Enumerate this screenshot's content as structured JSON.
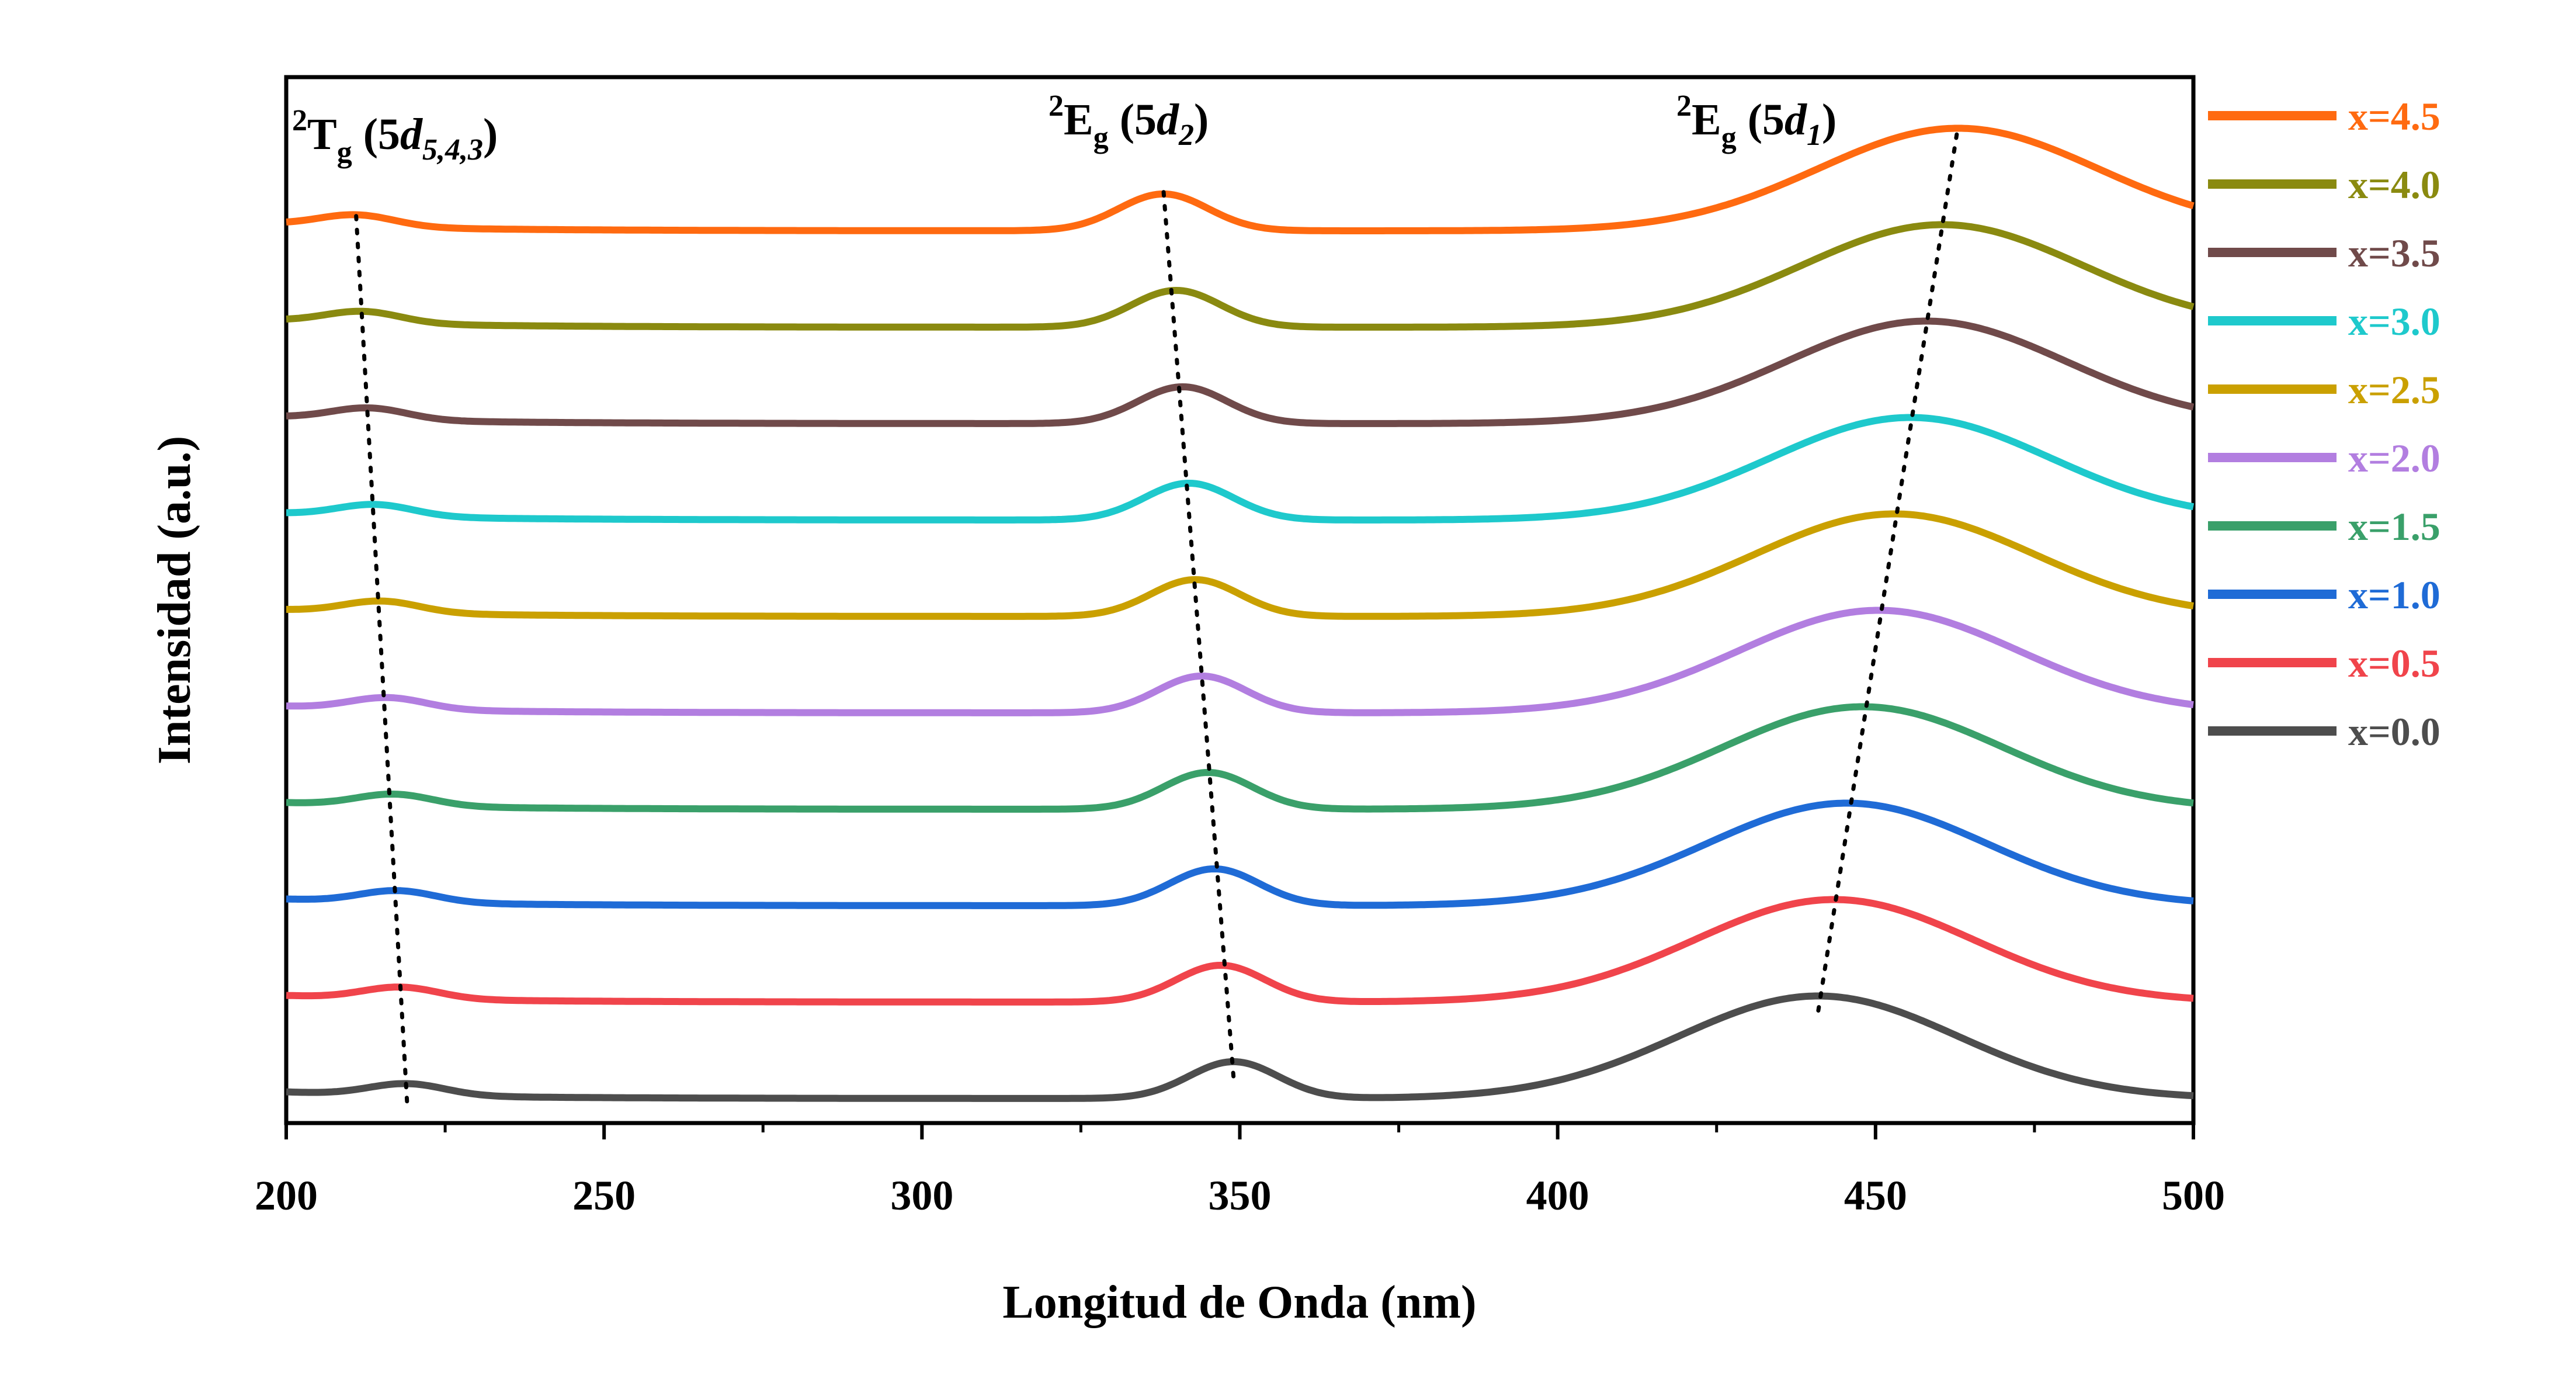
{
  "chart_data": {
    "type": "line",
    "xlabel": "Longitud de Onda (nm)",
    "ylabel": "Intensidad (a.u.)",
    "xlim": [
      200,
      500
    ],
    "x_ticks": [
      "200",
      "250",
      "300",
      "350",
      "400",
      "450",
      "500"
    ],
    "y_ticks_labeled": false,
    "grid": false,
    "legend_position": "right, outside plot",
    "legend_order": [
      "x=4.5",
      "x=4.0",
      "x=3.5",
      "x=3.0",
      "x=2.5",
      "x=2.0",
      "x=1.5",
      "x=1.0",
      "x=0.5",
      "x=0.0"
    ],
    "annotations": [
      {
        "label": "2Tg (5d5,4,3)",
        "parts": {
          "sup": "2",
          "main": "T",
          "sub": "g",
          "paren_open": " (5",
          "italic": "d",
          "italic_sub": "5,4,3",
          "paren_close": ")"
        }
      },
      {
        "label": "2Eg (5d2)",
        "parts": {
          "sup": "2",
          "main": "E",
          "sub": "g",
          "paren_open": " (5",
          "italic": "d",
          "italic_sub": "2",
          "paren_close": ")"
        }
      },
      {
        "label": "2Eg (5d1)",
        "parts": {
          "sup": "2",
          "main": "E",
          "sub": "g",
          "paren_open": " (5",
          "italic": "d",
          "italic_sub": "1",
          "paren_close": ")"
        }
      }
    ],
    "dotted_trend_lines": [
      {
        "band": "5d5,4,3",
        "x_values_x0_to_x45": [
          219,
          218,
          217.5,
          217,
          216,
          215,
          214,
          213,
          212,
          211
        ]
      },
      {
        "band": "5d2",
        "x_values_x0_to_x45": [
          349,
          347,
          346,
          345,
          344,
          343,
          342,
          341,
          340,
          338
        ]
      },
      {
        "band": "5d1",
        "x_values_x0_to_x45": [
          441,
          443.5,
          445.5,
          448,
          450.5,
          453,
          455.5,
          458,
          460.5,
          463
        ]
      }
    ],
    "series": [
      {
        "name": "x=0.0",
        "color": "#4d4d4d",
        "peaks_nm": [
          219,
          349,
          441
        ],
        "baseline_offset": 0
      },
      {
        "name": "x=0.5",
        "color": "#f0444b",
        "peaks_nm": [
          218,
          347,
          443.5
        ],
        "baseline_offset": 1
      },
      {
        "name": "x=1.0",
        "color": "#1f6bd6",
        "peaks_nm": [
          217.5,
          346,
          445.5
        ],
        "baseline_offset": 2
      },
      {
        "name": "x=1.5",
        "color": "#3aa06a",
        "peaks_nm": [
          217,
          345,
          448
        ],
        "baseline_offset": 3
      },
      {
        "name": "x=2.0",
        "color": "#b27ee0",
        "peaks_nm": [
          216,
          344,
          450.5
        ],
        "baseline_offset": 4
      },
      {
        "name": "x=2.5",
        "color": "#caa000",
        "peaks_nm": [
          215,
          343,
          453
        ],
        "baseline_offset": 5
      },
      {
        "name": "x=3.0",
        "color": "#1ec9cc",
        "peaks_nm": [
          214,
          342,
          455.5
        ],
        "baseline_offset": 6
      },
      {
        "name": "x=3.5",
        "color": "#704a4a",
        "peaks_nm": [
          213,
          341,
          458
        ],
        "baseline_offset": 7
      },
      {
        "name": "x=4.0",
        "color": "#8a8a10",
        "peaks_nm": [
          212,
          340,
          460.5
        ],
        "baseline_offset": 8
      },
      {
        "name": "x=4.5",
        "color": "#ff6a10",
        "peaks_nm": [
          211,
          338,
          463
        ],
        "baseline_offset": 9
      }
    ],
    "peak_shape": {
      "band_5d543": {
        "relative_height": 0.09,
        "width_nm": 6
      },
      "band_5d2": {
        "relative_height": 0.28,
        "width_nm": 7
      },
      "band_5d1": {
        "relative_height": 0.78,
        "width_nm": 22
      }
    }
  }
}
